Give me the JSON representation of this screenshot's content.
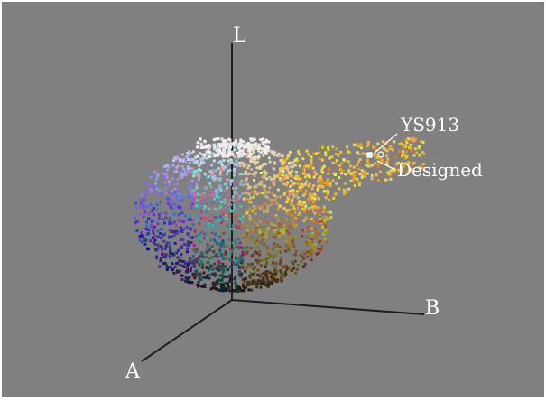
{
  "figure": {
    "background": "#808080",
    "axis_color": "#1e1e1e",
    "label_color": "#ffffff"
  },
  "axes": {
    "l_label": "L",
    "a_label": "A",
    "b_label": "B"
  },
  "annotations": {
    "ys913_label": "YS913",
    "designed_label": "Designed"
  }
}
